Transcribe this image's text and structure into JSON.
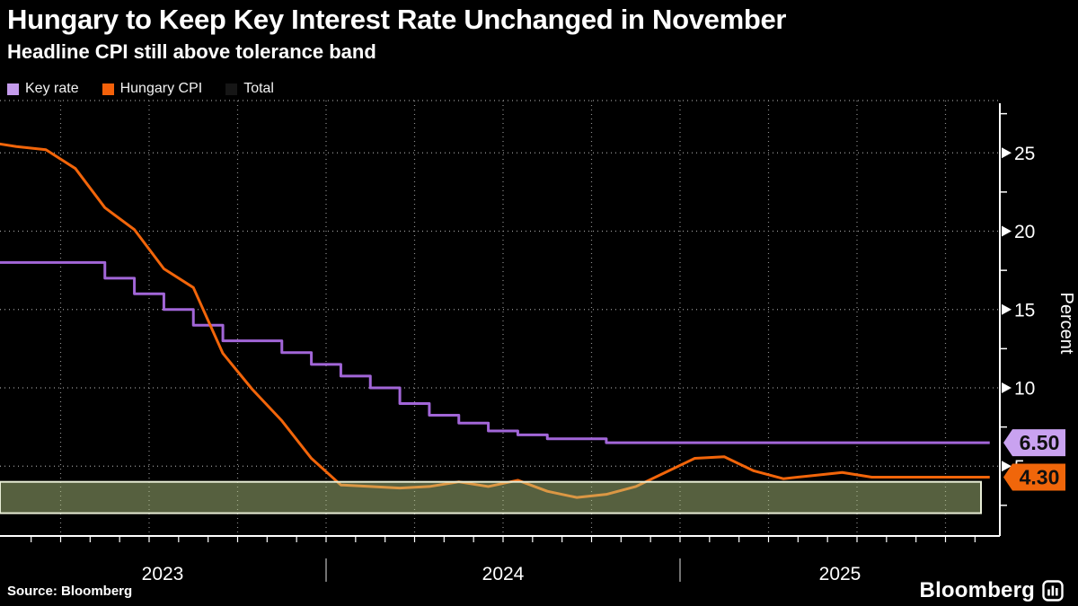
{
  "header": {
    "title": "Hungary to Keep Key Interest Rate Unchanged in November",
    "subtitle": "Headline CPI still above tolerance band"
  },
  "legend": {
    "items": [
      {
        "label": "Key rate",
        "color": "#c49bec"
      },
      {
        "label": "Hungary CPI",
        "color": "#f4610a"
      },
      {
        "label": "Total",
        "color": "#161616"
      }
    ]
  },
  "footer": {
    "source": "Source: Bloomberg",
    "brand": "Bloomberg"
  },
  "chart_data": {
    "type": "line",
    "title": "Hungary to Keep Key Interest Rate Unchanged in November",
    "subtitle": "Headline CPI still above tolerance band",
    "x_start": "2023-01",
    "x_freq": "monthly",
    "x_axis": {
      "year_labels": [
        "2023",
        "2024",
        "2025"
      ],
      "gridlines": "quarterly-dotted",
      "minor_ticks": "monthly"
    },
    "y_axis": {
      "label": "Percent",
      "side": "right",
      "ticks": [
        5,
        10,
        15,
        20,
        25
      ],
      "minor_ticks": [
        2.5,
        7.5,
        12.5,
        17.5,
        22.5,
        27.5
      ],
      "range": [
        0.5,
        28
      ]
    },
    "series": [
      {
        "name": "Key rate",
        "style": "step",
        "color": "#a266d8",
        "values": [
          18,
          18,
          18,
          18,
          17,
          16,
          15,
          14,
          13,
          13,
          12.25,
          11.5,
          10.75,
          10,
          9,
          8.25,
          7.75,
          7.25,
          7,
          6.75,
          6.75,
          6.5,
          6.5,
          6.5,
          6.5,
          6.5,
          6.5,
          6.5,
          6.5,
          6.5,
          6.5,
          6.5,
          6.5,
          6.5,
          6.5
        ]
      },
      {
        "name": "Hungary CPI",
        "style": "line",
        "color": "#f2650a",
        "values": [
          25.7,
          25.4,
          25.2,
          24.0,
          21.5,
          20.1,
          17.6,
          16.4,
          12.2,
          9.9,
          7.9,
          5.5,
          3.8,
          3.7,
          3.6,
          3.7,
          4.0,
          3.7,
          4.1,
          3.4,
          3.0,
          3.2,
          3.7,
          4.6,
          5.5,
          5.6,
          4.7,
          4.2,
          4.4,
          4.6,
          4.3,
          4.3,
          4.3,
          4.3,
          4.3
        ]
      }
    ],
    "band": {
      "name": "tolerance band",
      "from": 2,
      "to": 4,
      "fill": "rgba(191,213,140,0.45)",
      "border": "#e8edd6"
    },
    "end_labels": [
      {
        "text": "6.50",
        "value": 6.5,
        "bg": "#c9a2f0",
        "fg": "#101010"
      },
      {
        "text": "4.30",
        "value": 4.3,
        "bg": "#f0660a",
        "fg": "#101010"
      }
    ],
    "grid": true,
    "legend_position": "top-left"
  }
}
